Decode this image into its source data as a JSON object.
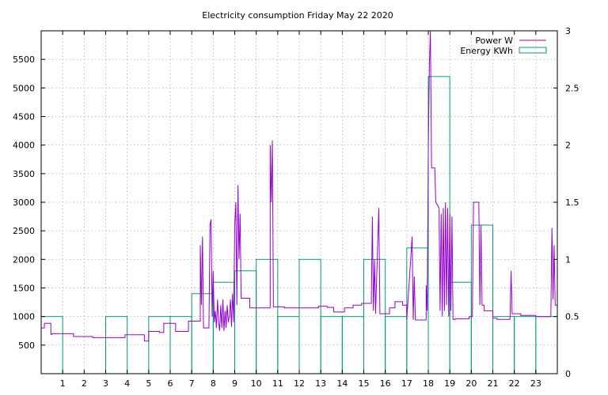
{
  "chart_data": {
    "type": "line",
    "title": "Electricity consumption Friday May 22 2020",
    "grid": true,
    "legend_position": "top-right",
    "x_axis": {
      "range": [
        0,
        24
      ],
      "ticks": [
        1,
        2,
        3,
        4,
        5,
        6,
        7,
        8,
        9,
        10,
        11,
        12,
        13,
        14,
        15,
        16,
        17,
        18,
        19,
        20,
        21,
        22,
        23
      ]
    },
    "y_left": {
      "range": [
        0,
        6000
      ],
      "ticks": [
        500,
        1000,
        1500,
        2000,
        2500,
        3000,
        3500,
        4000,
        4500,
        5000,
        5500
      ]
    },
    "y_right": {
      "range": [
        0,
        3
      ],
      "tick_labels": [
        "0",
        "0.5",
        "1",
        "1.5",
        "2",
        "2.5",
        "3"
      ],
      "tick_values": [
        0,
        0.5,
        1,
        1.5,
        2,
        2.5,
        3
      ]
    },
    "colors": {
      "power": "#9400d3",
      "energy": "#009e73"
    },
    "series": [
      {
        "name": "Power W",
        "axis": "left",
        "style": "line",
        "points": [
          [
            0,
            800
          ],
          [
            0.15,
            800
          ],
          [
            0.15,
            880
          ],
          [
            0.45,
            880
          ],
          [
            0.45,
            690
          ],
          [
            0.5,
            690
          ],
          [
            0.5,
            700
          ],
          [
            1.5,
            700
          ],
          [
            1.5,
            650
          ],
          [
            2.4,
            650
          ],
          [
            2.4,
            630
          ],
          [
            3.9,
            630
          ],
          [
            3.9,
            680
          ],
          [
            4.8,
            680
          ],
          [
            4.8,
            570
          ],
          [
            5.0,
            570
          ],
          [
            5.0,
            740
          ],
          [
            5.5,
            740
          ],
          [
            5.5,
            720
          ],
          [
            5.7,
            720
          ],
          [
            5.7,
            880
          ],
          [
            6.25,
            880
          ],
          [
            6.25,
            740
          ],
          [
            6.85,
            740
          ],
          [
            6.85,
            920
          ],
          [
            7.4,
            920
          ],
          [
            7.4,
            2250
          ],
          [
            7.45,
            1200
          ],
          [
            7.5,
            2400
          ],
          [
            7.55,
            800
          ],
          [
            7.8,
            800
          ],
          [
            7.85,
            2600
          ],
          [
            7.9,
            2700
          ],
          [
            7.95,
            1000
          ],
          [
            8.0,
            1800
          ],
          [
            8.05,
            900
          ],
          [
            8.1,
            1100
          ],
          [
            8.15,
            800
          ],
          [
            8.2,
            1300
          ],
          [
            8.25,
            900
          ],
          [
            8.3,
            750
          ],
          [
            8.35,
            1200
          ],
          [
            8.4,
            800
          ],
          [
            8.45,
            1300
          ],
          [
            8.5,
            750
          ],
          [
            8.55,
            1100
          ],
          [
            8.6,
            800
          ],
          [
            8.65,
            1200
          ],
          [
            8.7,
            900
          ],
          [
            8.75,
            1000
          ],
          [
            8.8,
            1300
          ],
          [
            8.85,
            820
          ],
          [
            8.9,
            1400
          ],
          [
            8.95,
            900
          ],
          [
            9.0,
            2600
          ],
          [
            9.05,
            3000
          ],
          [
            9.1,
            1200
          ],
          [
            9.15,
            3300
          ],
          [
            9.2,
            2000
          ],
          [
            9.25,
            2800
          ],
          [
            9.3,
            1320
          ],
          [
            9.7,
            1320
          ],
          [
            9.7,
            1150
          ],
          [
            10.65,
            1150
          ],
          [
            10.65,
            4000
          ],
          [
            10.7,
            3000
          ],
          [
            10.75,
            4080
          ],
          [
            10.8,
            1170
          ],
          [
            11.3,
            1170
          ],
          [
            11.3,
            1150
          ],
          [
            12.9,
            1150
          ],
          [
            12.9,
            1180
          ],
          [
            13.3,
            1180
          ],
          [
            13.3,
            1160
          ],
          [
            13.6,
            1160
          ],
          [
            13.6,
            1080
          ],
          [
            14.1,
            1080
          ],
          [
            14.1,
            1150
          ],
          [
            14.5,
            1150
          ],
          [
            14.5,
            1200
          ],
          [
            14.9,
            1200
          ],
          [
            14.9,
            1230
          ],
          [
            15.35,
            1230
          ],
          [
            15.4,
            2750
          ],
          [
            15.45,
            1100
          ],
          [
            15.5,
            2000
          ],
          [
            15.55,
            1050
          ],
          [
            15.7,
            2900
          ],
          [
            15.75,
            1050
          ],
          [
            16.2,
            1050
          ],
          [
            16.2,
            1150
          ],
          [
            16.45,
            1150
          ],
          [
            16.45,
            1260
          ],
          [
            16.8,
            1260
          ],
          [
            16.8,
            1200
          ],
          [
            17.0,
            1200
          ],
          [
            17.0,
            940
          ],
          [
            17.25,
            2400
          ],
          [
            17.3,
            940
          ],
          [
            17.35,
            1700
          ],
          [
            17.4,
            940
          ],
          [
            17.9,
            940
          ],
          [
            17.9,
            1550
          ],
          [
            17.95,
            1100
          ],
          [
            18.0,
            3900
          ],
          [
            18.05,
            5400
          ],
          [
            18.1,
            6000
          ],
          [
            18.15,
            3600
          ],
          [
            18.3,
            3600
          ],
          [
            18.35,
            3000
          ],
          [
            18.5,
            2900
          ],
          [
            18.55,
            1100
          ],
          [
            18.6,
            2800
          ],
          [
            18.65,
            1000
          ],
          [
            18.7,
            2900
          ],
          [
            18.75,
            1100
          ],
          [
            18.8,
            3000
          ],
          [
            18.85,
            1200
          ],
          [
            18.9,
            2900
          ],
          [
            18.95,
            1000
          ],
          [
            19.0,
            2800
          ],
          [
            19.05,
            1100
          ],
          [
            19.1,
            2750
          ],
          [
            19.15,
            950
          ],
          [
            19.25,
            950
          ],
          [
            19.25,
            960
          ],
          [
            19.9,
            960
          ],
          [
            19.9,
            1000
          ],
          [
            20.05,
            1000
          ],
          [
            20.1,
            3000
          ],
          [
            20.35,
            3000
          ],
          [
            20.4,
            1200
          ],
          [
            20.45,
            2600
          ],
          [
            20.5,
            1200
          ],
          [
            20.6,
            1200
          ],
          [
            20.6,
            1100
          ],
          [
            21.0,
            1100
          ],
          [
            21.0,
            970
          ],
          [
            21.2,
            970
          ],
          [
            21.2,
            950
          ],
          [
            21.8,
            950
          ],
          [
            21.85,
            1800
          ],
          [
            21.9,
            1050
          ],
          [
            22.3,
            1050
          ],
          [
            22.3,
            1020
          ],
          [
            23.0,
            1020
          ],
          [
            23.0,
            1000
          ],
          [
            23.7,
            1000
          ],
          [
            23.75,
            2550
          ],
          [
            23.8,
            1300
          ],
          [
            23.85,
            2250
          ],
          [
            23.9,
            1200
          ],
          [
            24.0,
            1200
          ]
        ]
      },
      {
        "name": "Energy KWh",
        "axis": "right",
        "style": "boxes",
        "values": [
          0.5,
          0,
          0,
          0.5,
          0,
          0.5,
          0.5,
          0.7,
          0.8,
          0.9,
          1.0,
          0.5,
          1.0,
          0.5,
          0.5,
          1.0,
          0.5,
          1.1,
          2.6,
          0.8,
          1.3,
          0.5,
          0.5,
          0.5
        ]
      }
    ]
  }
}
